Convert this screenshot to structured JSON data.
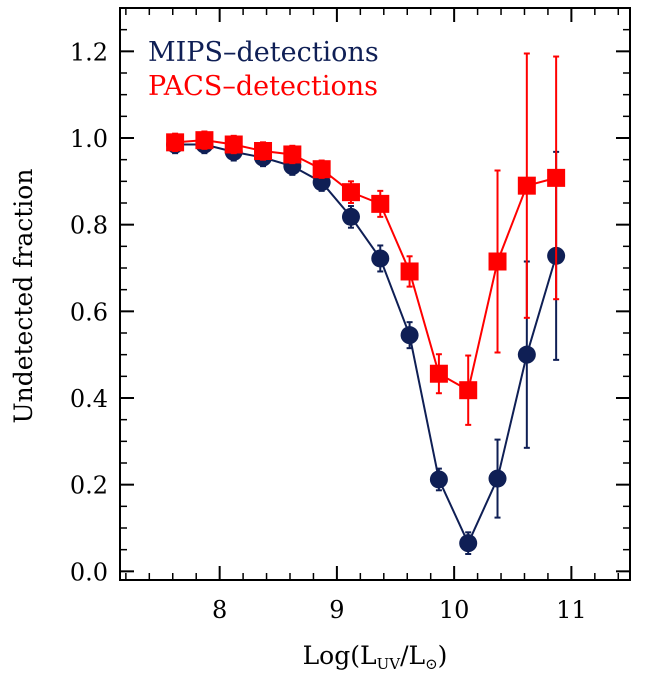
{
  "chart_data": {
    "type": "scatter",
    "xlabel": "Log(L",
    "xlabel_sub": "UV",
    "xlabel_mid": "/L",
    "xlabel_sub2": "⊙",
    "xlabel_end": ")",
    "ylabel": "Undetected fraction",
    "xlim": [
      7.15,
      11.5
    ],
    "ylim": [
      -0.02,
      1.3
    ],
    "xticks": [
      8,
      9,
      10,
      11
    ],
    "xtick_labels": [
      "8",
      "9",
      "10",
      "11"
    ],
    "yticks": [
      0.0,
      0.2,
      0.4,
      0.6,
      0.8,
      1.0,
      1.2
    ],
    "ytick_labels": [
      "0.0",
      "0.2",
      "0.4",
      "0.6",
      "0.8",
      "1.0",
      "1.2"
    ],
    "grid": false,
    "legend_position": "top-left",
    "series": [
      {
        "name": "MIPS–detections",
        "color": "#0f1f55",
        "marker": "circle",
        "x": [
          7.62,
          7.87,
          8.12,
          8.37,
          8.62,
          8.87,
          9.12,
          9.37,
          9.62,
          9.87,
          10.12,
          10.37,
          10.62,
          10.87
        ],
        "y": [
          0.985,
          0.985,
          0.968,
          0.955,
          0.935,
          0.898,
          0.818,
          0.722,
          0.545,
          0.212,
          0.065,
          0.214,
          0.5,
          0.728
        ],
        "err": [
          0.02,
          0.02,
          0.02,
          0.02,
          0.02,
          0.02,
          0.025,
          0.03,
          0.03,
          0.025,
          0.025,
          0.09,
          0.215,
          0.24
        ]
      },
      {
        "name": "PACS–detections",
        "color": "#ff0000",
        "marker": "square",
        "x": [
          7.62,
          7.87,
          8.12,
          8.37,
          8.62,
          8.87,
          9.12,
          9.37,
          9.62,
          9.87,
          10.12,
          10.37,
          10.62,
          10.87
        ],
        "y": [
          0.99,
          0.995,
          0.985,
          0.97,
          0.962,
          0.928,
          0.875,
          0.848,
          0.692,
          0.456,
          0.418,
          0.715,
          0.89,
          0.908
        ],
        "err": [
          0.02,
          0.02,
          0.02,
          0.02,
          0.02,
          0.02,
          0.025,
          0.03,
          0.035,
          0.045,
          0.08,
          0.21,
          0.305,
          0.28
        ]
      }
    ]
  }
}
